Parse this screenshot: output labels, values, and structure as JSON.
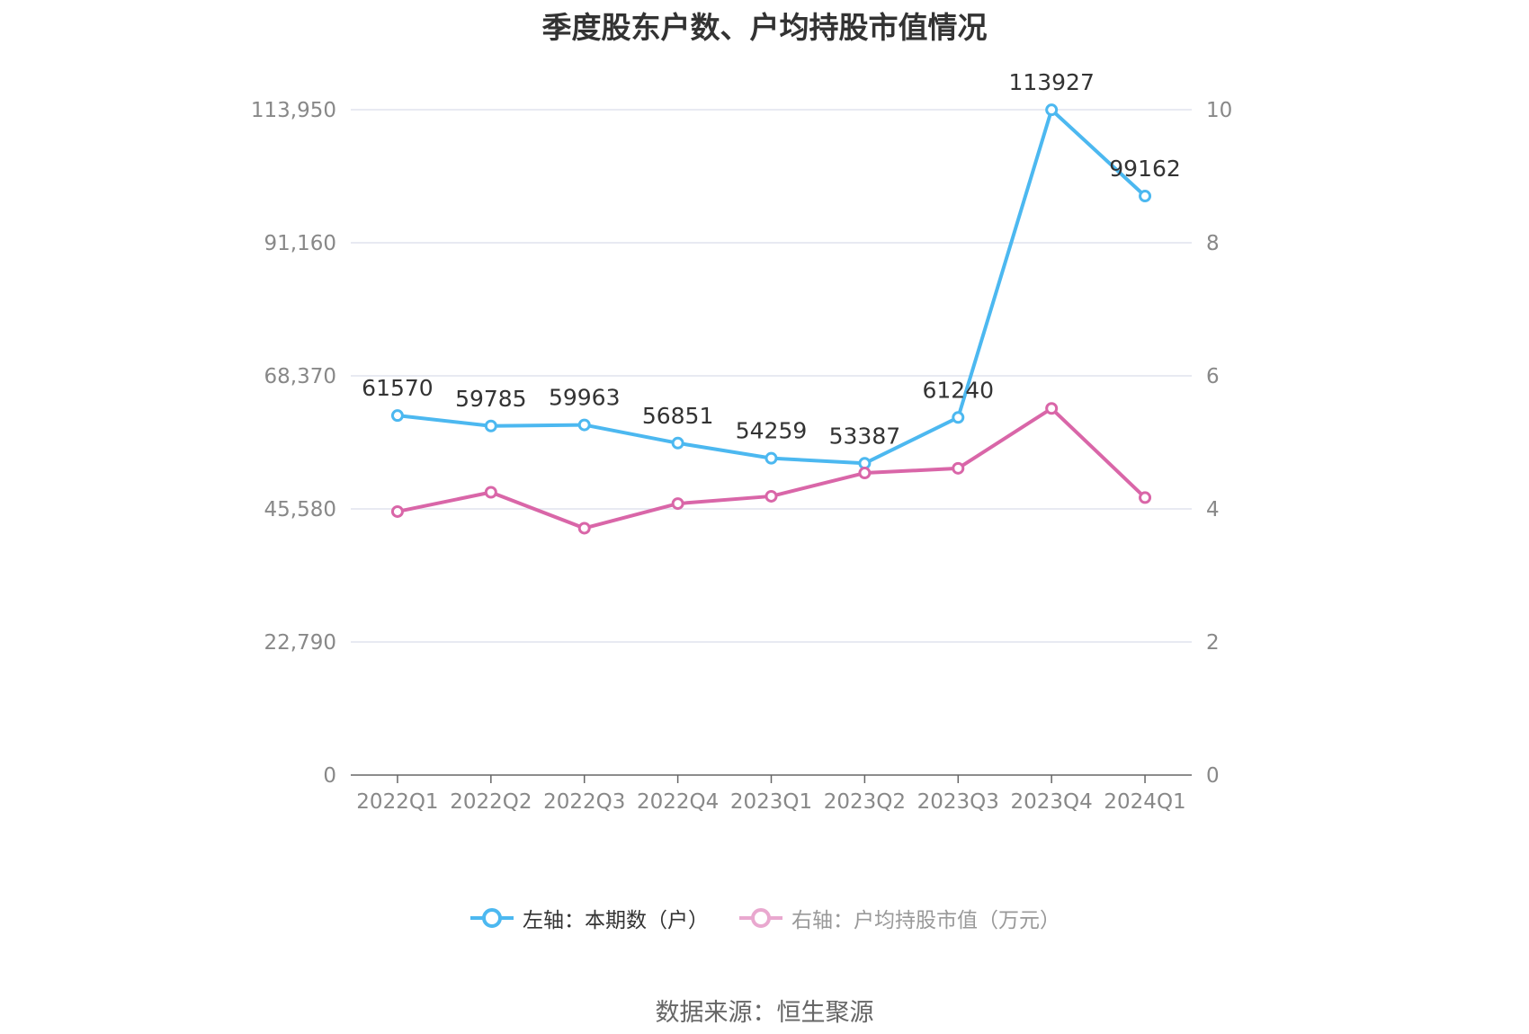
{
  "chart_data": {
    "type": "line",
    "title": "季度股东户数、户均持股市值情况",
    "categories": [
      "2022Q1",
      "2022Q2",
      "2022Q3",
      "2022Q4",
      "2023Q1",
      "2023Q2",
      "2023Q3",
      "2023Q4",
      "2024Q1"
    ],
    "y_left": {
      "ticks": [
        "0",
        "22,790",
        "45,580",
        "68,370",
        "91,160",
        "113,950"
      ],
      "range": [
        0,
        113950
      ]
    },
    "y_right": {
      "ticks": [
        "0",
        "2",
        "4",
        "6",
        "8",
        "10"
      ],
      "range": [
        0,
        10
      ]
    },
    "series": [
      {
        "name": "左轴：本期数（户）",
        "axis": "left",
        "color": "#4cb8f0",
        "values": [
          61570,
          59785,
          59963,
          56851,
          54259,
          53387,
          61240,
          113927,
          99162
        ],
        "labels": [
          "61570",
          "59785",
          "59963",
          "56851",
          "54259",
          "53387",
          "61240",
          "113927",
          "99162"
        ]
      },
      {
        "name": "右轴：户均持股市值（万元）",
        "axis": "right",
        "color": "#d966a8",
        "legend_color": "#e9a8cf",
        "values": [
          3.96,
          4.25,
          3.71,
          4.08,
          4.19,
          4.54,
          4.61,
          5.51,
          4.17
        ]
      }
    ],
    "grid": true,
    "legend_position": "bottom"
  },
  "source": "数据来源：恒生聚源"
}
